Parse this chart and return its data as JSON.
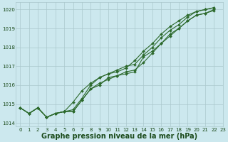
{
  "xlabel": "Graphe pression niveau de la mer (hPa)",
  "ylim": [
    1013.8,
    1020.4
  ],
  "xlim": [
    -0.5,
    23
  ],
  "yticks": [
    1014,
    1015,
    1016,
    1017,
    1018,
    1019,
    1020
  ],
  "xticks": [
    0,
    1,
    2,
    3,
    4,
    5,
    6,
    7,
    8,
    9,
    10,
    11,
    12,
    13,
    14,
    15,
    16,
    17,
    18,
    19,
    20,
    21,
    22,
    23
  ],
  "bg_color": "#cce8ee",
  "grid_color": "#aac8cc",
  "line_color": "#2d6a2d",
  "series": [
    [
      1014.8,
      1014.5,
      1014.8,
      1014.3,
      1014.5,
      1014.6,
      1014.6,
      1015.2,
      1015.8,
      1016.0,
      1016.4,
      1016.5,
      1016.6,
      1016.7,
      1017.5,
      1017.8,
      1018.2,
      1018.6,
      1019.0,
      1019.4,
      1019.7,
      1019.8,
      1019.95
    ],
    [
      1014.8,
      1014.5,
      1014.8,
      1014.3,
      1014.5,
      1014.6,
      1015.1,
      1015.7,
      1016.1,
      1016.4,
      1016.6,
      1016.7,
      1016.9,
      1017.3,
      1017.8,
      1018.2,
      1018.7,
      1019.1,
      1019.4,
      1019.7,
      1019.9,
      1020.0,
      1020.1
    ],
    [
      1014.8,
      1014.5,
      1014.8,
      1014.3,
      1014.5,
      1014.6,
      1014.7,
      1015.3,
      1016.0,
      1016.4,
      1016.6,
      1016.8,
      1017.0,
      1017.1,
      1017.6,
      1018.0,
      1018.5,
      1018.9,
      1019.2,
      1019.6,
      1019.9,
      1020.0,
      1020.1
    ],
    [
      1014.8,
      1014.5,
      1014.8,
      1014.3,
      1014.5,
      1014.6,
      1014.6,
      1015.2,
      1015.8,
      1016.1,
      1016.3,
      1016.5,
      1016.7,
      1016.8,
      1017.2,
      1017.7,
      1018.2,
      1018.7,
      1019.0,
      1019.4,
      1019.7,
      1019.8,
      1020.0
    ]
  ],
  "marker": "D",
  "markersize": 2.0,
  "linewidth": 0.8,
  "font_color": "#1a4a1a",
  "tick_fontsize": 5.0,
  "xlabel_fontsize": 7.0
}
